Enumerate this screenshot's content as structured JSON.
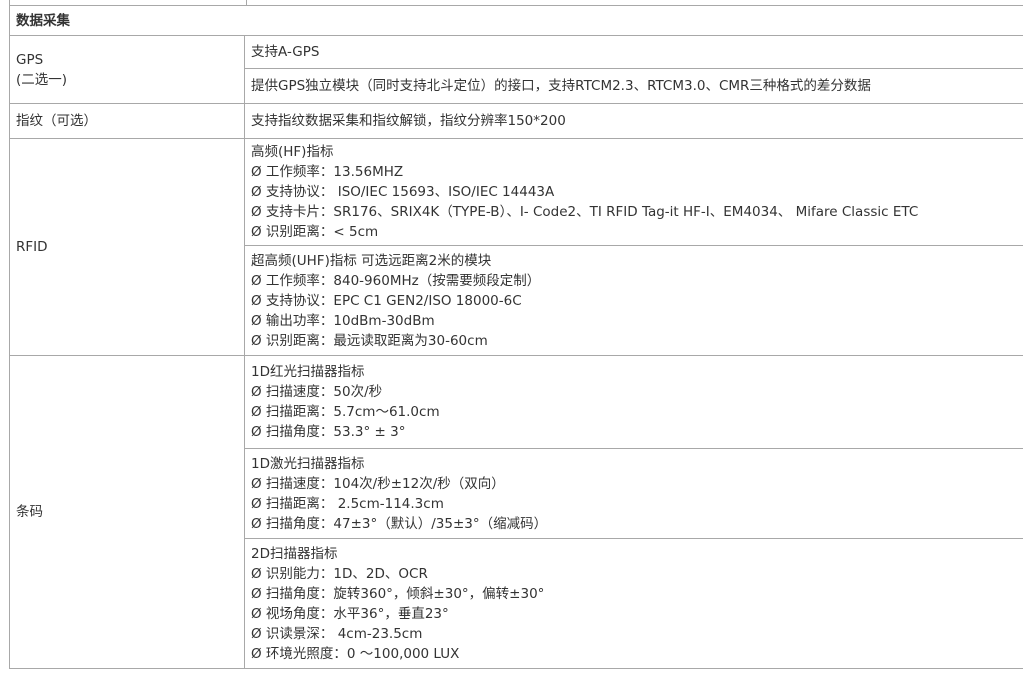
{
  "section_title": "数据采集",
  "gps": {
    "label": [
      "GPS",
      "(二选一)"
    ],
    "items": [
      "支持A-GPS",
      "提供GPS独立模块（同时支持北斗定位）的接口，支持RTCM2.3、RTCM3.0、CMR三种格式的差分数据"
    ]
  },
  "fingerprint": {
    "label": "指纹（可选）",
    "value": "支持指纹数据采集和指纹解锁，指纹分辨率150*200"
  },
  "rfid": {
    "label": "RFID",
    "blocks": [
      [
        "高频(HF)指标",
        "Ø 工作频率：13.56MHZ",
        "Ø 支持协议： ISO/IEC 15693、ISO/IEC 14443A",
        "Ø 支持卡片：SR176、SRIX4K（TYPE-B）、I- Code2、TI RFID Tag-it HF-I、EM4034、 Mifare Classic ETC",
        "Ø 识别距离：< 5cm"
      ],
      [
        "超高频(UHF)指标  可选远距离2米的模块",
        "Ø 工作频率：840-960MHz（按需要频段定制）",
        "Ø 支持协议：EPC C1 GEN2/ISO 18000-6C",
        "Ø 输出功率：10dBm-30dBm",
        "Ø 识别距离：最远读取距离为30-60cm"
      ]
    ]
  },
  "barcode": {
    "label": "条码",
    "blocks": [
      [
        "1D红光扫描器指标",
        "Ø 扫描速度：50次/秒",
        "Ø 扫描距离：5.7cm～61.0cm",
        "Ø 扫描角度：53.3° ± 3°"
      ],
      [
        "1D激光扫描器指标",
        "Ø 扫描速度：104次/秒±12次/秒（双向）",
        "Ø 扫描距离： 2.5cm-114.3cm",
        "Ø 扫描角度：47±3°（默认）/35±3°（缩减码）"
      ],
      [
        "2D扫描器指标",
        "Ø 识别能力：1D、2D、OCR",
        "Ø 扫描角度：旋转360°，倾斜±30°，偏转±30°",
        "Ø 视场角度：水平36°，垂直23°",
        "Ø 识读景深： 4cm-23.5cm",
        "Ø 环境光照度：0 ～100,000 LUX"
      ]
    ]
  }
}
